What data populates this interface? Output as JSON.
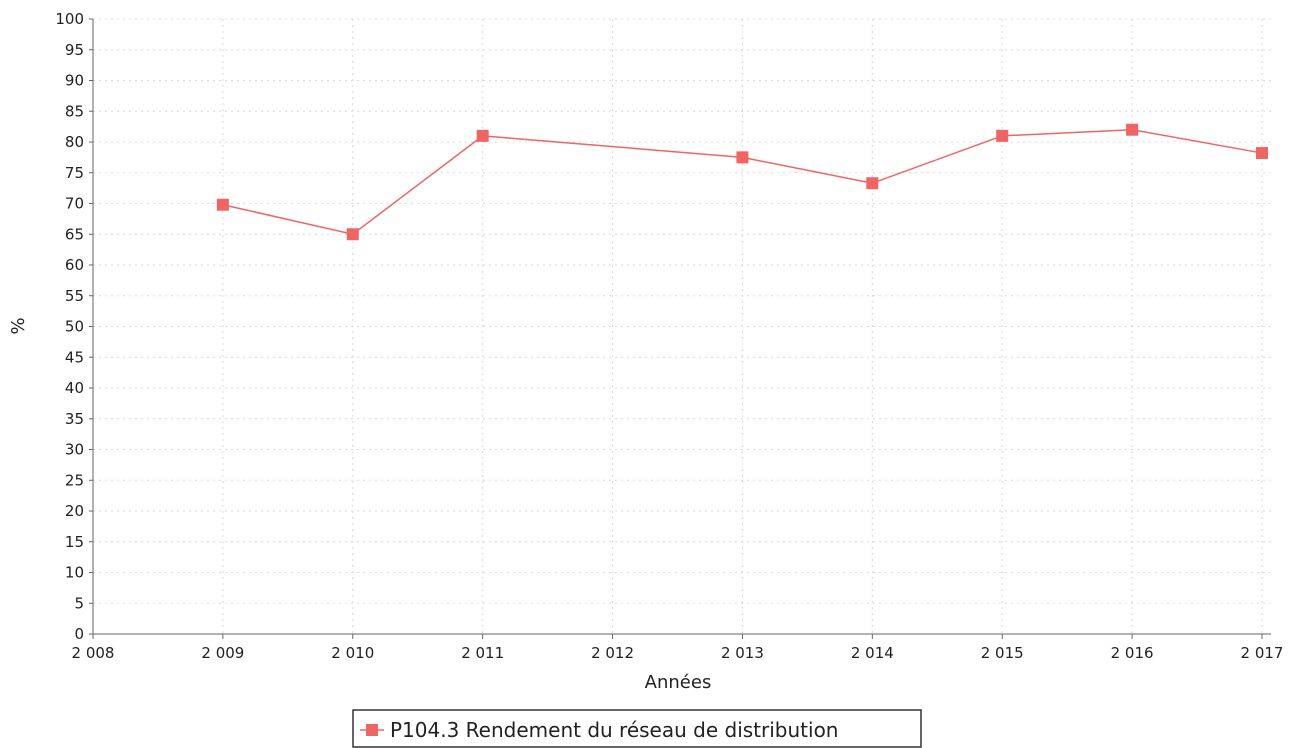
{
  "chart_data": {
    "type": "line",
    "title": "",
    "xlabel": "Années",
    "ylabel": "%",
    "xlim": [
      2008,
      2017
    ],
    "ylim": [
      0,
      100
    ],
    "x_ticks": [
      2008,
      2009,
      2010,
      2011,
      2012,
      2013,
      2014,
      2015,
      2016,
      2017
    ],
    "x_tick_labels": [
      "2 008",
      "2 009",
      "2 010",
      "2 011",
      "2 012",
      "2 013",
      "2 014",
      "2 015",
      "2 016",
      "2 017"
    ],
    "y_ticks": [
      0,
      5,
      10,
      15,
      20,
      25,
      30,
      35,
      40,
      45,
      50,
      55,
      60,
      65,
      70,
      75,
      80,
      85,
      90,
      95,
      100
    ],
    "y_tick_labels": [
      "0",
      "5",
      "10",
      "15",
      "20",
      "25",
      "30",
      "35",
      "40",
      "45",
      "50",
      "55",
      "60",
      "65",
      "70",
      "75",
      "80",
      "85",
      "90",
      "95",
      "100"
    ],
    "grid": true,
    "legend_position": "bottom-center",
    "series": [
      {
        "name": "P104.3 Rendement du réseau de distribution",
        "color": "#f06464",
        "marker": "square",
        "x": [
          2009,
          2010,
          2011,
          2013,
          2014,
          2015,
          2016,
          2017
        ],
        "values": [
          69.8,
          65.0,
          81.0,
          77.5,
          73.3,
          81.0,
          82.0,
          78.2
        ]
      }
    ]
  }
}
